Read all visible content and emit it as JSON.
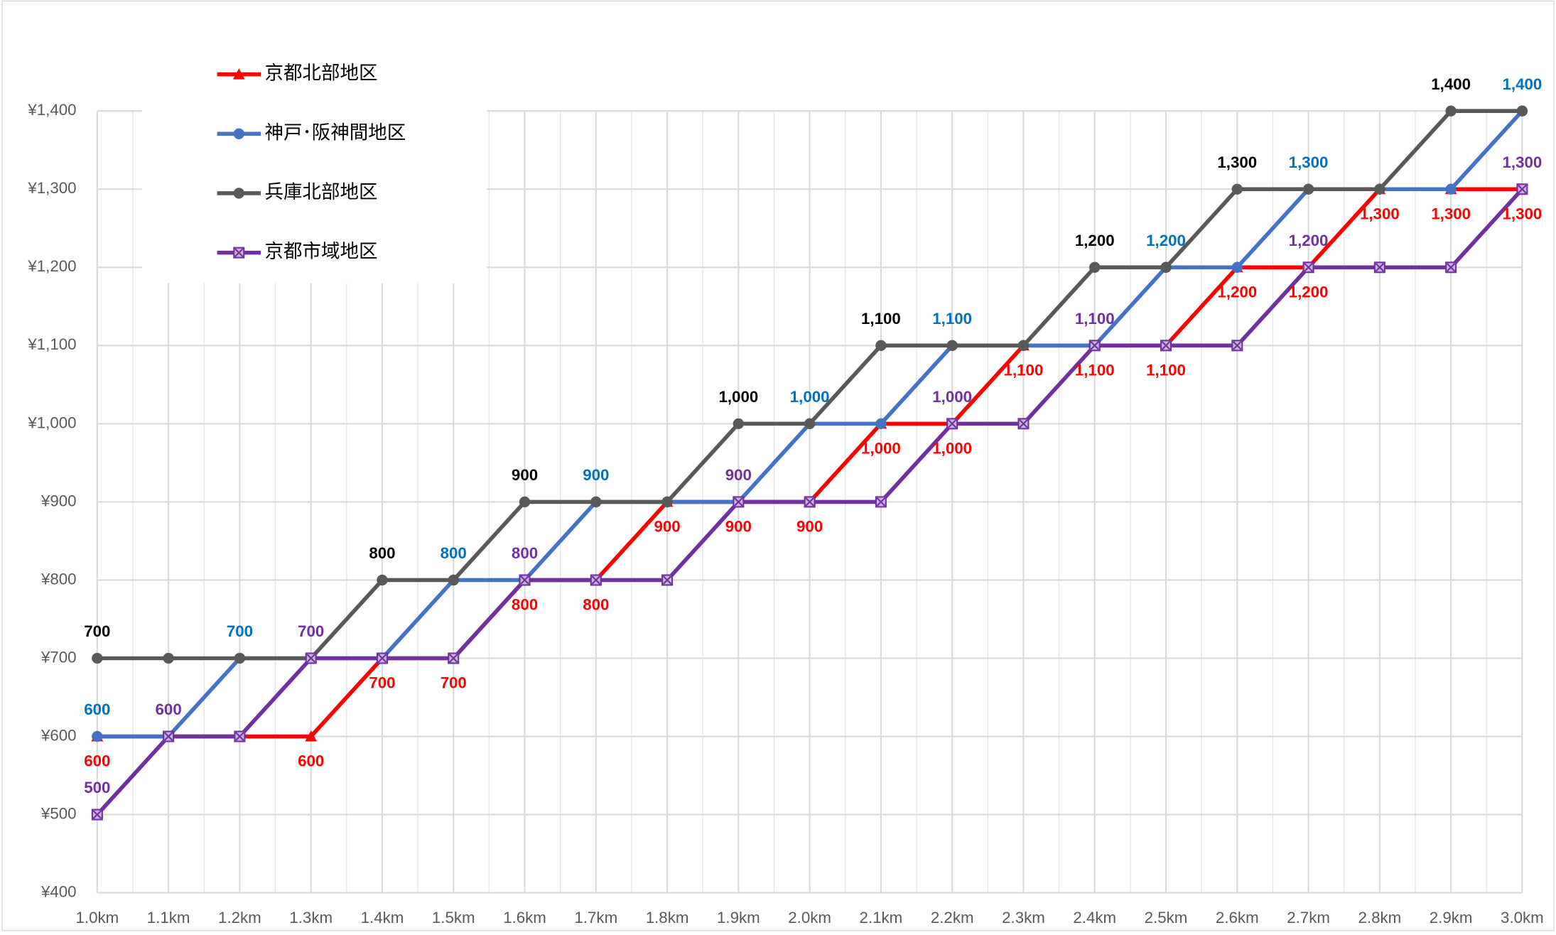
{
  "chart_data": {
    "type": "line",
    "categories": [
      "1.0km",
      "1.1km",
      "1.2km",
      "1.3km",
      "1.4km",
      "1.5km",
      "1.6km",
      "1.7km",
      "1.8km",
      "1.9km",
      "2.0km",
      "2.1km",
      "2.2km",
      "2.3km",
      "2.4km",
      "2.5km",
      "2.6km",
      "2.7km",
      "2.8km",
      "2.9km",
      "3.0km"
    ],
    "series": [
      {
        "name": "京都北部地区",
        "color": "#ff0000",
        "marker": "triangle",
        "label_color": "#ff0000",
        "label_position": "below",
        "values": [
          600,
          600,
          600,
          600,
          700,
          700,
          800,
          800,
          900,
          900,
          900,
          1000,
          1000,
          1100,
          1100,
          1100,
          1200,
          1200,
          1300,
          1300,
          1300
        ],
        "value_labels": [
          "600",
          null,
          null,
          "600",
          "700",
          "700",
          "800",
          "800",
          "900",
          "900",
          "900",
          "1,000",
          "1,000",
          "1,100",
          "1,100",
          "1,100",
          "1,200",
          "1,200",
          "1,300",
          "1,300",
          "1,300"
        ]
      },
      {
        "name": "神戸･阪神間地区",
        "color": "#4472c4",
        "marker": "circle",
        "label_color": "#0070c0",
        "label_position": "above",
        "values": [
          600,
          600,
          700,
          700,
          700,
          800,
          800,
          900,
          900,
          900,
          1000,
          1000,
          1100,
          1100,
          1100,
          1200,
          1200,
          1300,
          1300,
          1300,
          1400
        ],
        "value_labels": [
          "600",
          null,
          "700",
          null,
          null,
          "800",
          null,
          "900",
          null,
          null,
          "1,000",
          null,
          "1,100",
          null,
          null,
          "1,200",
          null,
          "1,300",
          null,
          null,
          "1,400"
        ]
      },
      {
        "name": "兵庫北部地区",
        "color": "#595959",
        "marker": "circle",
        "label_color": "#000000",
        "label_position": "above",
        "values": [
          700,
          700,
          700,
          700,
          800,
          800,
          900,
          900,
          900,
          1000,
          1000,
          1100,
          1100,
          1100,
          1200,
          1200,
          1300,
          1300,
          1300,
          1400,
          1400
        ],
        "value_labels": [
          "700",
          null,
          null,
          null,
          "800",
          null,
          "900",
          null,
          null,
          "1,000",
          null,
          "1,100",
          null,
          null,
          "1,200",
          null,
          "1,300",
          null,
          null,
          "1,400",
          null
        ]
      },
      {
        "name": "京都市域地区",
        "color": "#7030a0",
        "marker": "square-x",
        "label_color": "#7030a0",
        "label_position": "above",
        "values": [
          500,
          600,
          600,
          700,
          700,
          700,
          800,
          800,
          800,
          900,
          900,
          900,
          1000,
          1000,
          1100,
          1100,
          1100,
          1200,
          1200,
          1200,
          1300
        ],
        "value_labels": [
          "500",
          "600",
          null,
          "700",
          null,
          null,
          "800",
          null,
          null,
          "900",
          null,
          null,
          "1,000",
          null,
          "1,100",
          null,
          null,
          "1,200",
          null,
          null,
          "1,300"
        ]
      }
    ],
    "ylim": [
      400,
      1400
    ],
    "yticks": [
      {
        "value": 400,
        "label": "¥400"
      },
      {
        "value": 500,
        "label": "¥500"
      },
      {
        "value": 600,
        "label": "¥600"
      },
      {
        "value": 700,
        "label": "¥700"
      },
      {
        "value": 800,
        "label": "¥800"
      },
      {
        "value": 900,
        "label": "¥900"
      },
      {
        "value": 1000,
        "label": "¥1,000"
      },
      {
        "value": 1100,
        "label": "¥1,100"
      },
      {
        "value": 1200,
        "label": "¥1,200"
      },
      {
        "value": 1300,
        "label": "¥1,300"
      },
      {
        "value": 1400,
        "label": "¥1,400"
      }
    ],
    "grid": true,
    "legend": "upper left"
  }
}
